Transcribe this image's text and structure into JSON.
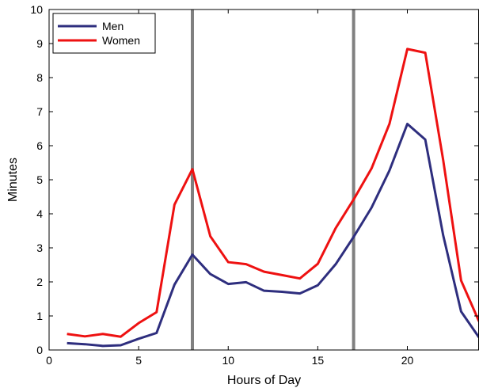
{
  "chart_data": {
    "type": "line",
    "xlabel": "Hours of Day",
    "ylabel": "Minutes",
    "xlim": [
      0,
      24
    ],
    "ylim": [
      0,
      10
    ],
    "xticks": [
      0,
      5,
      10,
      15,
      20
    ],
    "yticks": [
      0,
      1,
      2,
      3,
      4,
      5,
      6,
      7,
      8,
      9,
      10
    ],
    "legend_position": "top-left",
    "grid": false,
    "vlines": [
      {
        "x": 8,
        "color": "#808080"
      },
      {
        "x": 17,
        "color": "#808080"
      }
    ],
    "x": [
      1,
      2,
      3,
      4,
      5,
      6,
      7,
      8,
      9,
      10,
      11,
      12,
      13,
      14,
      15,
      16,
      17,
      18,
      19,
      20,
      21,
      22,
      23,
      24
    ],
    "series": [
      {
        "name": "Men",
        "color": "#2e2e7e",
        "values": [
          0.2,
          0.17,
          0.12,
          0.14,
          0.33,
          0.5,
          1.92,
          2.8,
          2.23,
          1.94,
          1.99,
          1.74,
          1.71,
          1.66,
          1.9,
          2.52,
          3.32,
          4.18,
          5.27,
          6.64,
          6.18,
          3.37,
          1.13,
          0.37
        ]
      },
      {
        "name": "Women",
        "color": "#ee1111",
        "values": [
          0.47,
          0.4,
          0.47,
          0.39,
          0.79,
          1.11,
          4.27,
          5.31,
          3.34,
          2.58,
          2.52,
          2.3,
          2.2,
          2.1,
          2.53,
          3.58,
          4.42,
          5.33,
          6.64,
          8.84,
          8.73,
          5.58,
          2.04,
          0.84
        ]
      }
    ]
  }
}
